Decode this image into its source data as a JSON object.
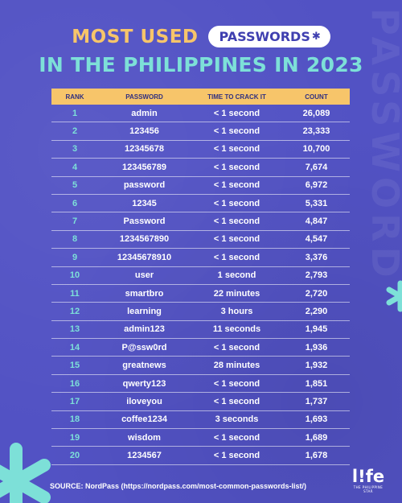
{
  "title": {
    "line1_prefix": "MOST USED",
    "line1_pill": "PASSWORDS",
    "line1_pill_mark": "✱",
    "line2": "IN THE PHILIPPINES IN 2023"
  },
  "watermark_text": "PASSWORD",
  "table": {
    "headers": {
      "rank": "RANK",
      "password": "PASSWORD",
      "time": "TIME TO CRACK IT",
      "count": "COUNT"
    },
    "rows": [
      {
        "rank": "1",
        "password": "admin",
        "time": "< 1 second",
        "count": "26,089"
      },
      {
        "rank": "2",
        "password": "123456",
        "time": "< 1 second",
        "count": "23,333"
      },
      {
        "rank": "3",
        "password": "12345678",
        "time": "< 1 second",
        "count": "10,700"
      },
      {
        "rank": "4",
        "password": "123456789",
        "time": "< 1 second",
        "count": "7,674"
      },
      {
        "rank": "5",
        "password": "password",
        "time": "< 1 second",
        "count": "6,972"
      },
      {
        "rank": "6",
        "password": "12345",
        "time": "< 1 second",
        "count": "5,331"
      },
      {
        "rank": "7",
        "password": "Password",
        "time": "< 1 second",
        "count": "4,847"
      },
      {
        "rank": "8",
        "password": "1234567890",
        "time": "< 1 second",
        "count": "4,547"
      },
      {
        "rank": "9",
        "password": "12345678910",
        "time": "< 1 second",
        "count": "3,376"
      },
      {
        "rank": "10",
        "password": "user",
        "time": "1 second",
        "count": "2,793"
      },
      {
        "rank": "11",
        "password": "smartbro",
        "time": "22 minutes",
        "count": "2,720"
      },
      {
        "rank": "12",
        "password": "learning",
        "time": "3 hours",
        "count": "2,290"
      },
      {
        "rank": "13",
        "password": "admin123",
        "time": "11 seconds",
        "count": "1,945"
      },
      {
        "rank": "14",
        "password": "P@ssw0rd",
        "time": "< 1 second",
        "count": "1,936"
      },
      {
        "rank": "15",
        "password": "greatnews",
        "time": "28 minutes",
        "count": "1,932"
      },
      {
        "rank": "16",
        "password": "qwerty123",
        "time": "< 1 second",
        "count": "1,851"
      },
      {
        "rank": "17",
        "password": "iloveyou",
        "time": "< 1 second",
        "count": "1,737"
      },
      {
        "rank": "18",
        "password": "coffee1234",
        "time": "3 seconds",
        "count": "1,693"
      },
      {
        "rank": "19",
        "password": "wisdom",
        "time": "< 1 second",
        "count": "1,689"
      },
      {
        "rank": "20",
        "password": "1234567",
        "time": "< 1 second",
        "count": "1,678"
      }
    ]
  },
  "source": "SOURCE: NordPass (https://nordpass.com/most-common-passwords-list/)",
  "logo": {
    "word": "l!fe",
    "tagline": "THE PHILIPPINE STAR"
  },
  "colors": {
    "background": "#5252c4",
    "accent_yellow": "#f7c56a",
    "accent_teal": "#7de0d8",
    "pill_text": "#3f3fb0"
  },
  "icons": {
    "asterisk_decoration_right": "teal-asterisk",
    "asterisk_decoration_bottom_left": "teal-asterisk"
  }
}
